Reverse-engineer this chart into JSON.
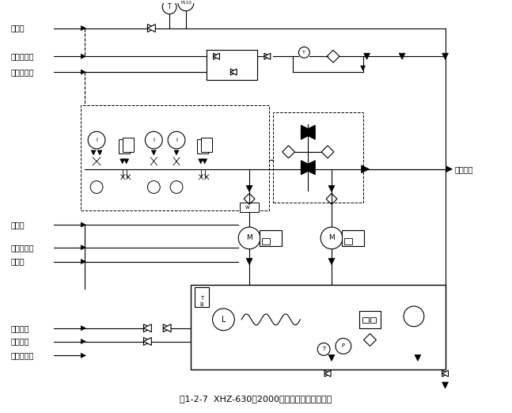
{
  "title": "图1-2-7  XHZ-630～2000型稀油润滑装置原理图",
  "bg_color": "#ffffff",
  "line_color": "#000000",
  "labels": {
    "supply_oil": "供油口",
    "cool_water_in": "冷却水入口",
    "cool_water_out": "冷却水出口",
    "replenish_oil": "补油口",
    "clean_oil_in": "净油机入口",
    "return_oil": "回油口",
    "steam_in": "蒸汽入口",
    "steam_out": "蒸汽出口",
    "clean_oil_out": "净油机出口",
    "drain_oil": "排污油口"
  }
}
